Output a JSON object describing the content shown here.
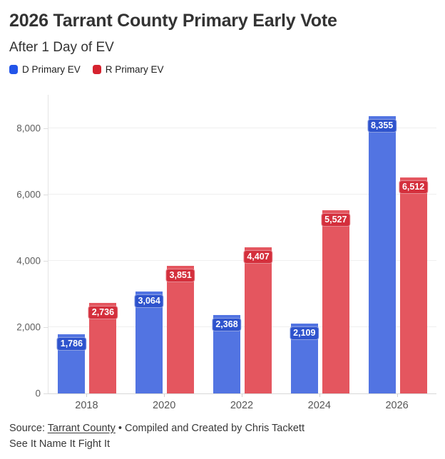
{
  "header": {
    "title": "2026 Tarrant County Primary Early Vote",
    "subtitle": "After 1 Day of EV"
  },
  "legend": {
    "items": [
      {
        "label": "D Primary EV",
        "color": "#2254e9"
      },
      {
        "label": "R Primary EV",
        "color": "#d6232f"
      }
    ]
  },
  "chart_data": {
    "type": "bar",
    "categories": [
      "2018",
      "2020",
      "2022",
      "2024",
      "2026"
    ],
    "series": [
      {
        "name": "D Primary EV",
        "values": [
          1786,
          3064,
          2368,
          2109,
          8355
        ],
        "color": "#5274e2",
        "label_bg": "#2e53cd"
      },
      {
        "name": "R Primary EV",
        "values": [
          2736,
          3851,
          4407,
          5527,
          6512
        ],
        "color": "#e4565f",
        "label_bg": "#d42f3c"
      }
    ],
    "title": "2026 Tarrant County Primary Early Vote",
    "subtitle": "After 1 Day of EV",
    "xlabel": "",
    "ylabel": "",
    "ylim": [
      0,
      9000
    ],
    "yticks": [
      0,
      2000,
      4000,
      6000,
      8000
    ],
    "grid": true,
    "legend_position": "top-left",
    "value_labels": true
  },
  "footer": {
    "source_prefix": "Source: ",
    "source_link": "Tarrant County",
    "credit_suffix": " • Compiled and Created by Chris Tackett",
    "tagline": "See It Name It Fight It"
  }
}
